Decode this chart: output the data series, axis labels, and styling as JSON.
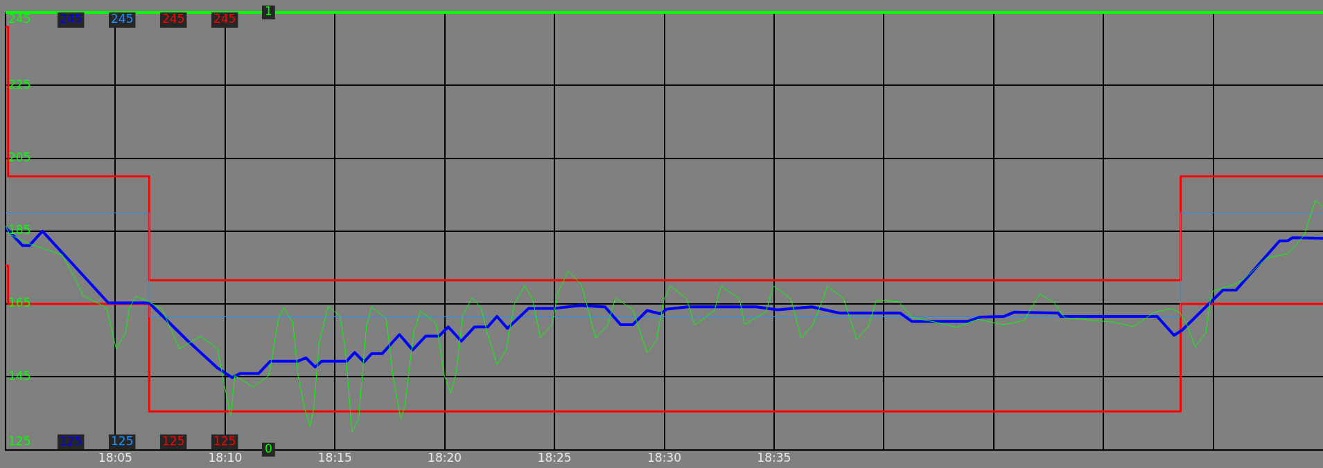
{
  "chart_data": {
    "type": "line",
    "xlim": [
      18.0,
      19.0
    ],
    "xticks": [
      {
        "value": 18.0833,
        "label": "18:05"
      },
      {
        "value": 18.1667,
        "label": "18:10"
      },
      {
        "value": 18.25,
        "label": "18:15"
      },
      {
        "value": 18.3333,
        "label": "18:20"
      },
      {
        "value": 18.4167,
        "label": "18:25"
      },
      {
        "value": 18.5,
        "label": "18:30"
      },
      {
        "value": 18.5833,
        "label": "18:35"
      },
      {
        "value": 18.6667,
        "label": null
      },
      {
        "value": 18.75,
        "label": null
      },
      {
        "value": 18.8333,
        "label": null
      },
      {
        "value": 18.9167,
        "label": null
      }
    ],
    "ylim": [
      125,
      245
    ],
    "yticks": [
      125,
      145,
      165,
      185,
      205,
      225,
      245
    ],
    "y2lim": [
      0,
      1
    ],
    "y2ticks": [
      0,
      1
    ],
    "grid": true,
    "annotations": [
      "245",
      "245",
      "245",
      "245",
      "125",
      "125",
      "125",
      "125"
    ],
    "series": [
      {
        "type": "line",
        "color": "#00ff00",
        "x": [
          18.0,
          18.003,
          18.018,
          18.043,
          18.052,
          18.059,
          18.075,
          18.077,
          18.084,
          18.091,
          18.094,
          18.099,
          18.109,
          18.119,
          18.132,
          18.148,
          18.161,
          18.165,
          18.171,
          18.174,
          18.188,
          18.2,
          18.207,
          18.211,
          18.218,
          18.222,
          18.227,
          18.231,
          18.234,
          18.238,
          18.245,
          18.254,
          18.258,
          18.263,
          18.268,
          18.274,
          18.278,
          18.289,
          18.294,
          18.3,
          18.303,
          18.31,
          18.315,
          18.327,
          18.333,
          18.338,
          18.342,
          18.347,
          18.354,
          18.361,
          18.366,
          18.373,
          18.38,
          18.386,
          18.394,
          18.4,
          18.406,
          18.415,
          18.419,
          18.427,
          18.437,
          18.448,
          18.457,
          18.463,
          18.476,
          18.487,
          18.494,
          18.5,
          18.505,
          18.517,
          18.523,
          18.538,
          18.543,
          18.557,
          18.561,
          18.577,
          18.583,
          18.596,
          18.604,
          18.613,
          18.624,
          18.636,
          18.646,
          18.655,
          18.661,
          18.678,
          18.688,
          18.706,
          18.722,
          18.738,
          18.757,
          18.773,
          18.785,
          18.796,
          18.804,
          18.814,
          18.841,
          18.856,
          18.872,
          18.884,
          18.891,
          18.896,
          18.903,
          18.911,
          18.915,
          18.917,
          18.931,
          18.939,
          18.957,
          18.974,
          18.986,
          18.994,
          19.0
        ],
        "values": [
          186.5,
          184.1,
          181.5,
          178.5,
          172.5,
          167.3,
          164.3,
          163.5,
          152.7,
          157.0,
          163.9,
          167.1,
          165.6,
          163.4,
          152.7,
          156.1,
          152.7,
          144.6,
          134.3,
          145.4,
          142.2,
          145.4,
          160.8,
          164.0,
          160.0,
          145.4,
          136.4,
          131.3,
          136.4,
          154.4,
          164.4,
          161.6,
          152.2,
          130.0,
          133.4,
          159.2,
          164.2,
          160.9,
          145.4,
          133.4,
          136.9,
          157.5,
          163.1,
          159.6,
          145.4,
          140.5,
          146.0,
          161.7,
          166.7,
          163.9,
          156.6,
          148.4,
          152.3,
          164.8,
          169.9,
          166.5,
          155.8,
          159.4,
          167.8,
          174.0,
          170.4,
          155.6,
          159.2,
          166.7,
          163.5,
          151.6,
          154.9,
          166.6,
          169.9,
          166.5,
          159.2,
          163.1,
          169.9,
          166.5,
          159.4,
          162.8,
          169.9,
          166.5,
          155.6,
          159.4,
          169.9,
          166.5,
          155.3,
          158.8,
          166.1,
          165.6,
          161.3,
          160.0,
          158.6,
          160.8,
          159.3,
          160.4,
          167.8,
          165.4,
          161.2,
          160.9,
          160.0,
          158.8,
          162.7,
          163.7,
          162.8,
          159.9,
          153.2,
          157.1,
          167.4,
          168.7,
          170.1,
          171.5,
          177.5,
          178.9,
          184.0,
          193.4,
          191.7
        ]
      },
      {
        "type": "line",
        "color": "#0000ff",
        "x": [
          18.0,
          18.013,
          18.018,
          18.028,
          18.078,
          18.109,
          18.138,
          18.161,
          18.172,
          18.178,
          18.192,
          18.201,
          18.222,
          18.228,
          18.235,
          18.24,
          18.259,
          18.265,
          18.272,
          18.278,
          18.286,
          18.299,
          18.309,
          18.319,
          18.329,
          18.336,
          18.346,
          18.356,
          18.366,
          18.373,
          18.381,
          18.397,
          18.417,
          18.436,
          18.455,
          18.467,
          18.476,
          18.487,
          18.497,
          18.502,
          18.518,
          18.57,
          18.586,
          18.612,
          18.633,
          18.679,
          18.688,
          18.73,
          18.74,
          18.758,
          18.766,
          18.799,
          18.801,
          18.874,
          18.887,
          18.893,
          18.924,
          18.934,
          18.967,
          18.973,
          18.977,
          19.0
        ],
        "values": [
          186,
          181,
          181,
          185,
          165.3,
          165.3,
          155,
          147.4,
          144.8,
          145.9,
          145.9,
          149.3,
          149.3,
          150.2,
          147.7,
          149.3,
          149.3,
          151.7,
          149.1,
          151.4,
          151.4,
          156.6,
          152.4,
          156.2,
          156.2,
          158.7,
          154.8,
          158.7,
          158.7,
          161.6,
          158.3,
          163.8,
          163.8,
          164.6,
          164.2,
          159.3,
          159.3,
          163.2,
          162.3,
          163.6,
          164.2,
          164.2,
          163.4,
          164.2,
          162.5,
          162.5,
          160.2,
          160.2,
          161.4,
          161.6,
          162.8,
          162.5,
          161.6,
          161.6,
          156.4,
          157.8,
          168.8,
          168.8,
          182.3,
          182.3,
          183.2,
          183
        ]
      },
      {
        "type": "step",
        "color": "#1e90ff",
        "x": [
          18.0,
          18.109,
          18.892,
          19.0
        ],
        "values": [
          190,
          161.5,
          190,
          190
        ]
      },
      {
        "type": "step",
        "color": "#ff0000",
        "x": [
          18.0,
          18.002,
          18.109,
          18.892,
          19.0
        ],
        "values": [
          241,
          200,
          171.5,
          200,
          200
        ]
      },
      {
        "type": "step",
        "color": "#ff0000",
        "x": [
          18.0,
          18.002,
          18.109,
          18.892,
          19.0
        ],
        "values": [
          175.5,
          165,
          135.5,
          165,
          165
        ]
      },
      {
        "type": "step",
        "color": "#00ff00",
        "axis": "y2",
        "x": [
          18.0,
          19.0
        ],
        "values": [
          1,
          1
        ]
      }
    ]
  }
}
